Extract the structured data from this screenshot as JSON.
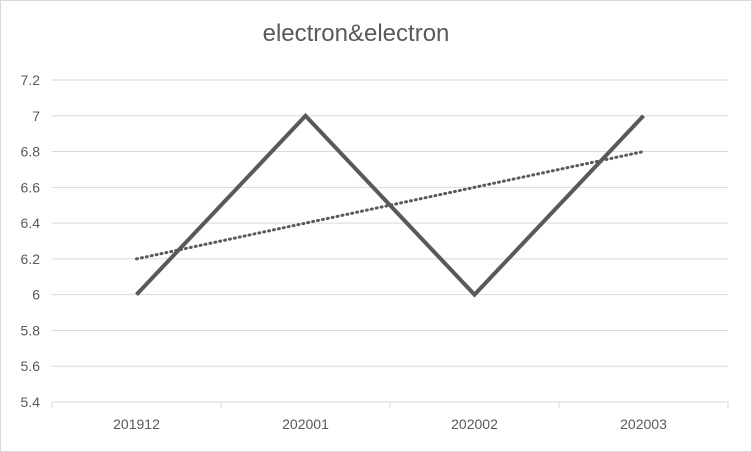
{
  "chart_data": {
    "type": "line",
    "title": "electron&electron",
    "categories": [
      "201912",
      "202001",
      "202002",
      "202003"
    ],
    "series": [
      {
        "values": [
          6,
          7,
          6,
          7
        ],
        "color": "#595959",
        "style": "solid"
      }
    ],
    "trendline": {
      "values": [
        6.2,
        6.4,
        6.6,
        6.8
      ],
      "color": "#595959",
      "style": "dotted",
      "type": "linear"
    },
    "ylim": [
      5.4,
      7.2
    ],
    "yticks": [
      "7.2",
      "7",
      "6.8",
      "6.6",
      "6.4",
      "6.2",
      "6",
      "5.8",
      "5.6",
      "5.4"
    ],
    "xlabel": "",
    "ylabel": "",
    "grid": true,
    "legend": "none"
  }
}
